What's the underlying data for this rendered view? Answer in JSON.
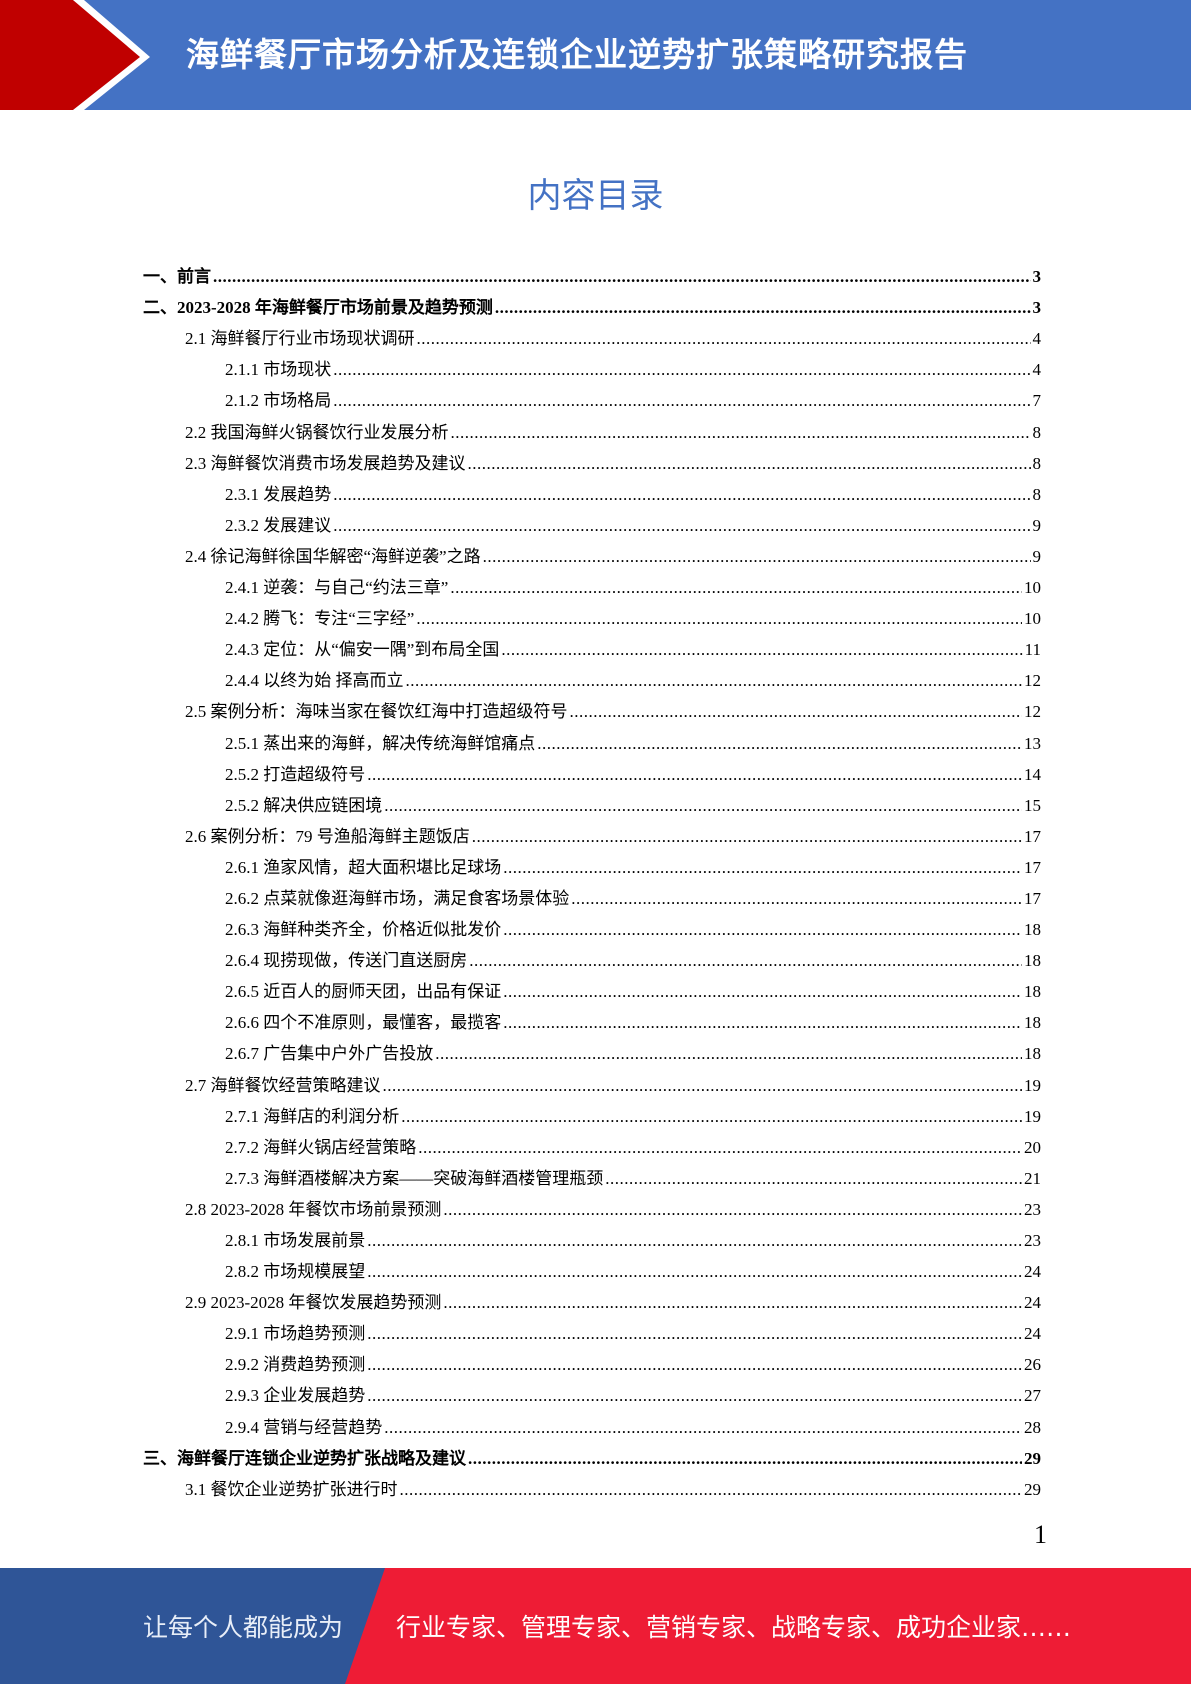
{
  "header": {
    "title": "海鲜餐厅市场分析及连锁企业逆势扩张策略研究报告",
    "colors": {
      "blue": "#4472c4",
      "red": "#c00000"
    }
  },
  "toc_title": "内容目录",
  "toc": [
    {
      "level": 1,
      "label": "一、前言",
      "page": "3"
    },
    {
      "level": 1,
      "label": "二、2023-2028 年海鲜餐厅市场前景及趋势预测",
      "page": "3"
    },
    {
      "level": 2,
      "label": "2.1  海鲜餐厅行业市场现状调研",
      "page": "4"
    },
    {
      "level": 3,
      "label": "2.1.1  市场现状",
      "page": "4"
    },
    {
      "level": 3,
      "label": "2.1.2  市场格局",
      "page": "7"
    },
    {
      "level": 2,
      "label": "2.2  我国海鲜火锅餐饮行业发展分析",
      "page": "8"
    },
    {
      "level": 2,
      "label": "2.3  海鲜餐饮消费市场发展趋势及建议",
      "page": "8"
    },
    {
      "level": 3,
      "label": "2.3.1  发展趋势",
      "page": "8"
    },
    {
      "level": 3,
      "label": "2.3.2  发展建议",
      "page": "9"
    },
    {
      "level": 2,
      "label": "2.4  徐记海鲜徐国华解密“海鲜逆袭”之路",
      "page": "9"
    },
    {
      "level": 3,
      "label": "2.4.1  逆袭：与自己“约法三章”",
      "page": "10"
    },
    {
      "level": 3,
      "label": "2.4.2  腾飞：专注“三字经”",
      "page": "10"
    },
    {
      "level": 3,
      "label": "2.4.3  定位：从“偏安一隅”到布局全国",
      "page": "11"
    },
    {
      "level": 3,
      "label": "2.4.4  以终为始  择高而立",
      "page": "12"
    },
    {
      "level": 2,
      "label": "2.5  案例分析：海味当家在餐饮红海中打造超级符号",
      "page": "12"
    },
    {
      "level": 3,
      "label": "2.5.1  蒸出来的海鲜，解决传统海鲜馆痛点",
      "page": "13"
    },
    {
      "level": 3,
      "label": "2.5.2  打造超级符号",
      "page": "14"
    },
    {
      "level": 3,
      "label": "2.5.2  解决供应链困境",
      "page": "15"
    },
    {
      "level": 2,
      "label": "2.6  案例分析：79 号渔船海鲜主题饭店",
      "page": "17"
    },
    {
      "level": 3,
      "label": "2.6.1  渔家风情，超大面积堪比足球场",
      "page": "17"
    },
    {
      "level": 3,
      "label": "2.6.2  点菜就像逛海鲜市场，满足食客场景体验",
      "page": "17"
    },
    {
      "level": 3,
      "label": "2.6.3  海鲜种类齐全，价格近似批发价",
      "page": "18"
    },
    {
      "level": 3,
      "label": "2.6.4  现捞现做，传送门直送厨房",
      "page": "18"
    },
    {
      "level": 3,
      "label": "2.6.5  近百人的厨师天团，出品有保证",
      "page": "18"
    },
    {
      "level": 3,
      "label": "2.6.6  四个不准原则，最懂客，最揽客",
      "page": "18"
    },
    {
      "level": 3,
      "label": "2.6.7  广告集中户外广告投放",
      "page": "18"
    },
    {
      "level": 2,
      "label": "2.7  海鲜餐饮经营策略建议",
      "page": "19"
    },
    {
      "level": 3,
      "label": "2.7.1  海鲜店的利润分析",
      "page": "19"
    },
    {
      "level": 3,
      "label": "2.7.2  海鲜火锅店经营策略",
      "page": "20"
    },
    {
      "level": 3,
      "label": "2.7.3  海鲜酒楼解决方案——突破海鲜酒楼管理瓶颈",
      "page": "21"
    },
    {
      "level": 2,
      "label": "2.8 2023-2028 年餐饮市场前景预测",
      "page": "23"
    },
    {
      "level": 3,
      "label": "2.8.1  市场发展前景",
      "page": "23"
    },
    {
      "level": 3,
      "label": "2.8.2  市场规模展望",
      "page": "24"
    },
    {
      "level": 2,
      "label": "2.9 2023-2028 年餐饮发展趋势预测",
      "page": "24"
    },
    {
      "level": 3,
      "label": "2.9.1  市场趋势预测",
      "page": "24"
    },
    {
      "level": 3,
      "label": "2.9.2  消费趋势预测",
      "page": "26"
    },
    {
      "level": 3,
      "label": "2.9.3  企业发展趋势",
      "page": "27"
    },
    {
      "level": 3,
      "label": "2.9.4  营销与经营趋势",
      "page": "28"
    },
    {
      "level": 1,
      "label": "三、海鲜餐厅连锁企业逆势扩张战略及建议",
      "page": "29"
    },
    {
      "level": 2,
      "label": "3.1  餐饮企业逆势扩张进行时",
      "page": "29"
    }
  ],
  "page_number": "1",
  "footer": {
    "left": "让每个人都能成为",
    "right": "行业专家、管理专家、营销专家、战略专家、成功企业家……",
    "colors": {
      "blue": "#2f5597",
      "red": "#ee1c35"
    }
  }
}
